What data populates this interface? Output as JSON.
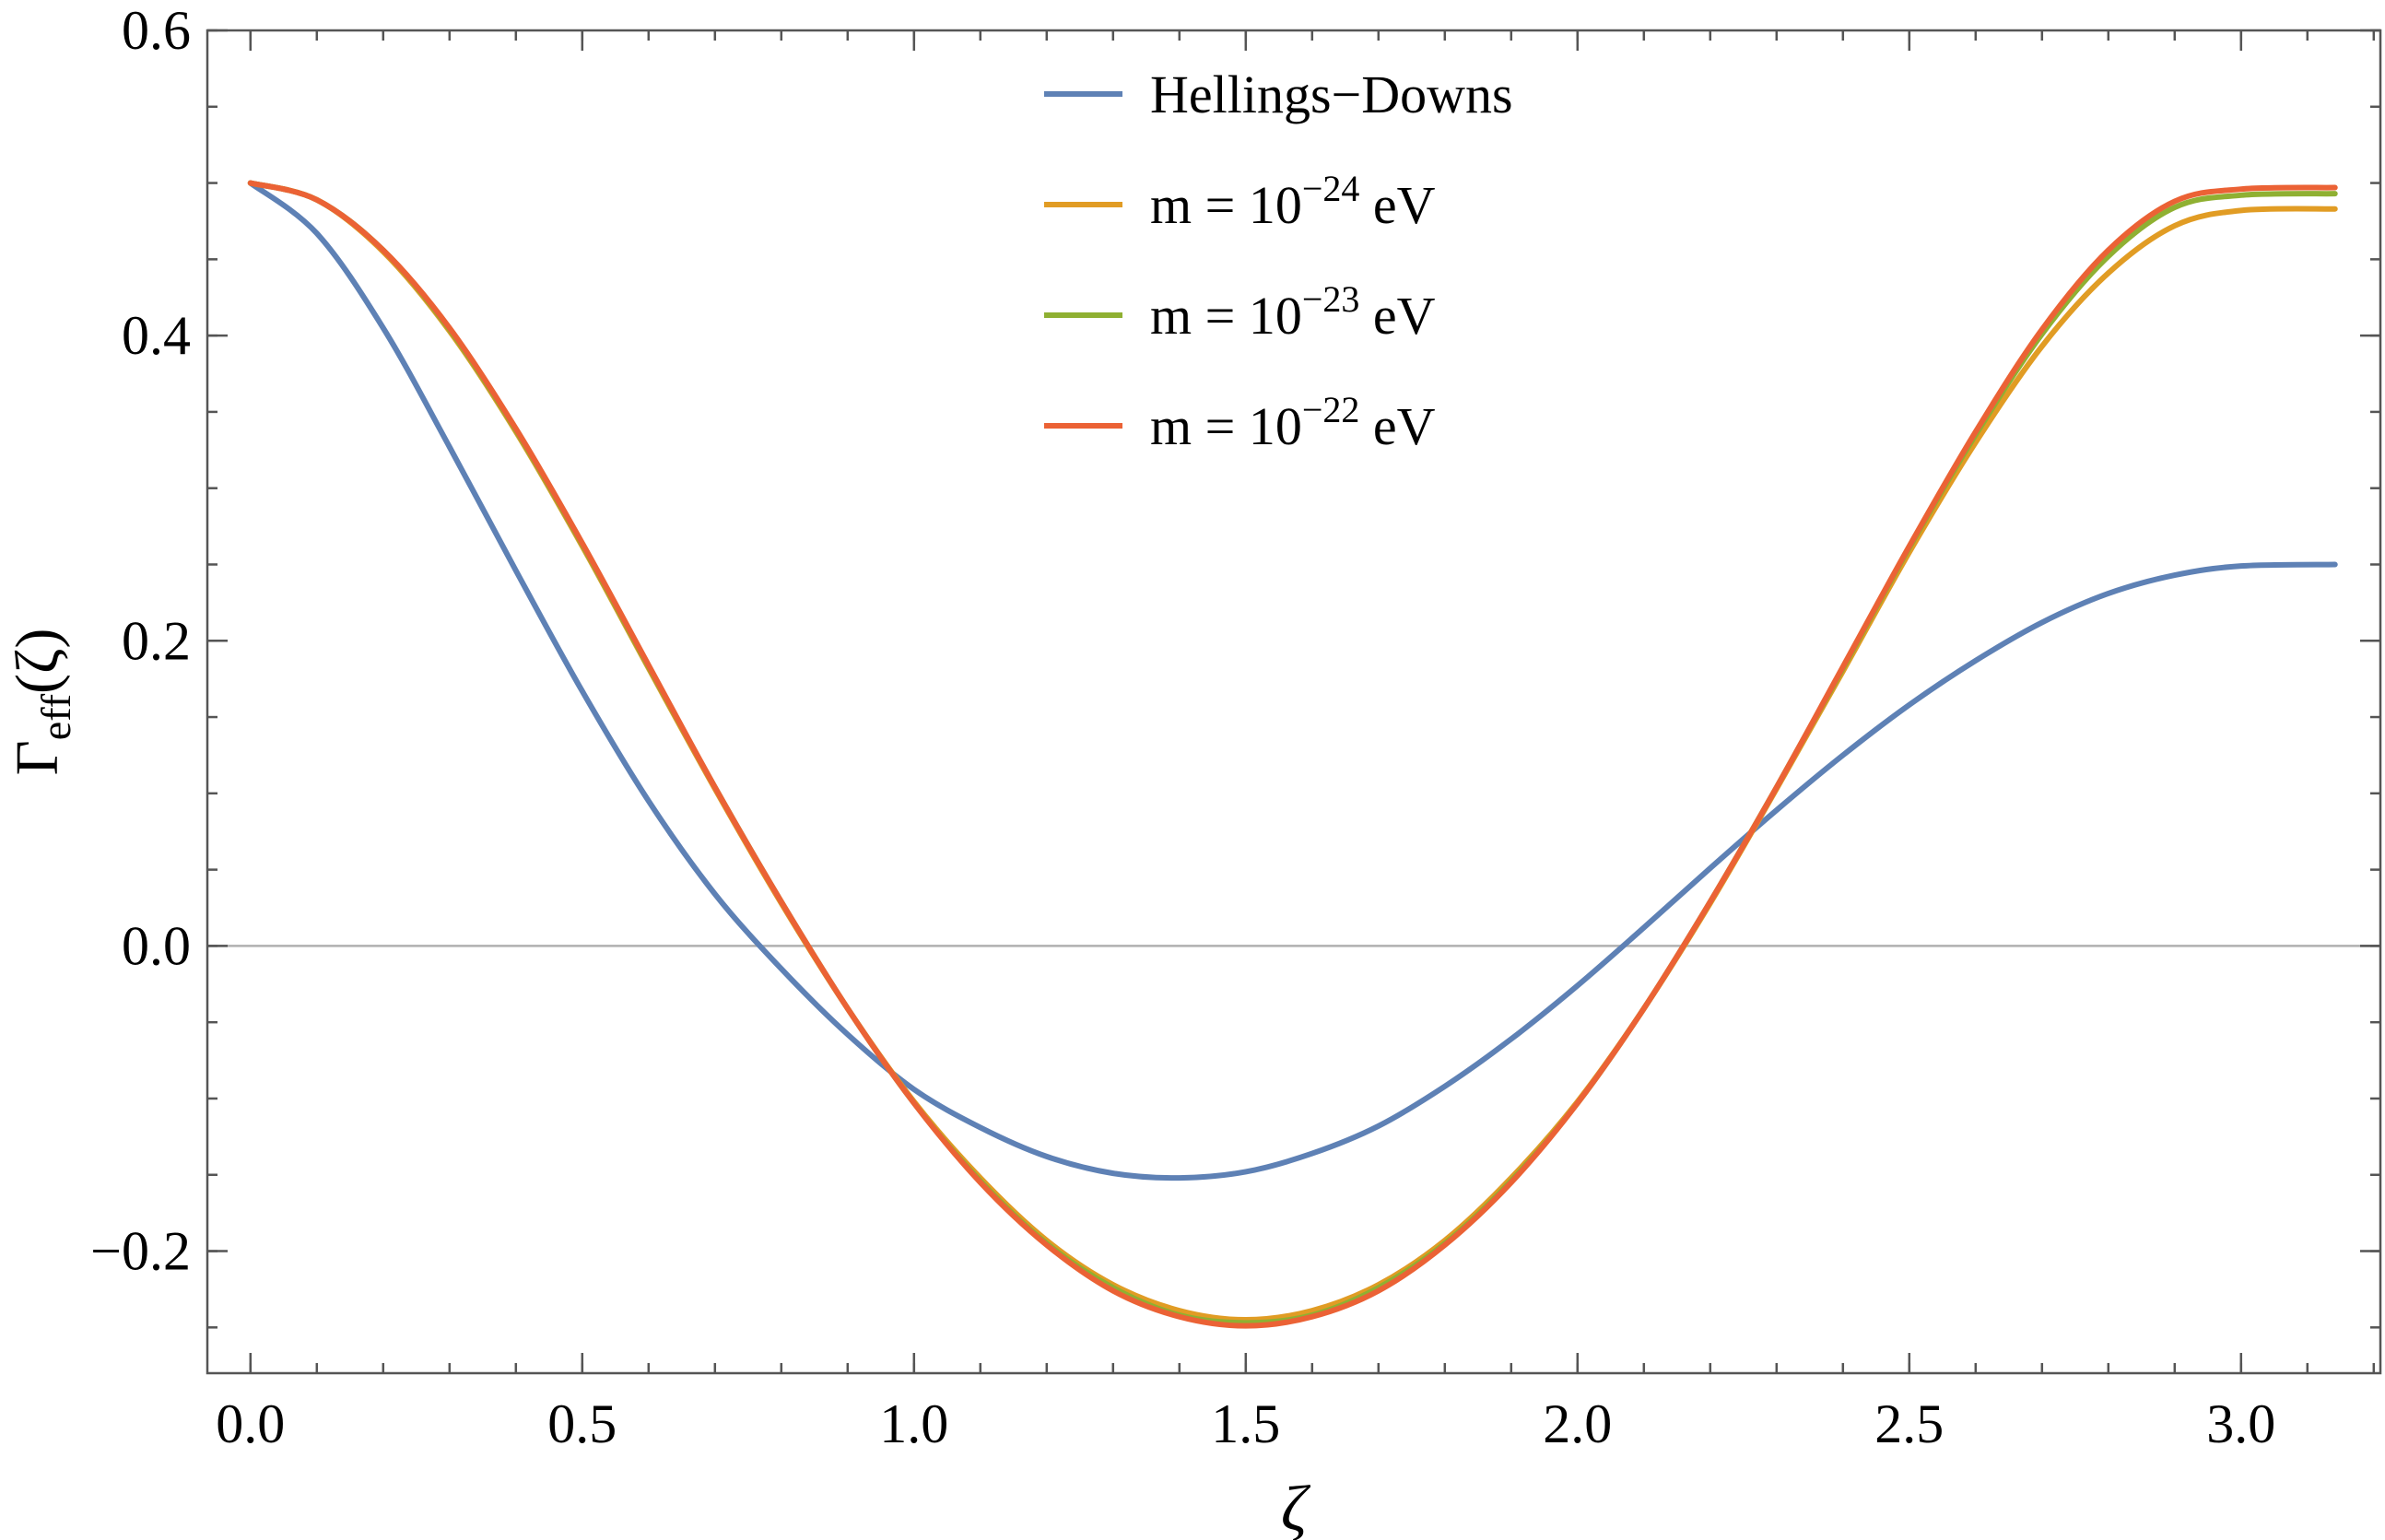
{
  "chart_data": {
    "type": "line",
    "xlabel": "ζ",
    "ylabel": {
      "main": "Γ",
      "sub": "eff",
      "arg": "(ζ)"
    },
    "xlim": [
      -0.065,
      3.21
    ],
    "ylim": [
      -0.28,
      0.6
    ],
    "x_ticks": [
      0.0,
      0.5,
      1.0,
      1.5,
      2.0,
      2.5,
      3.0
    ],
    "x_tick_labels": [
      "0.0",
      "0.5",
      "1.0",
      "1.5",
      "2.0",
      "2.5",
      "3.0"
    ],
    "y_ticks": [
      -0.2,
      0.0,
      0.2,
      0.4,
      0.6
    ],
    "y_tick_labels": [
      "−0.2",
      "0.0",
      "0.2",
      "0.4",
      "0.6"
    ],
    "x_minor_step": 0.1,
    "y_minor_step": 0.05,
    "zero_line": true,
    "grid": false,
    "legend_placement": "top-center",
    "x": [
      0.0,
      0.1,
      0.2,
      0.3,
      0.4,
      0.5,
      0.6,
      0.7,
      0.8,
      0.9,
      1.0,
      1.1,
      1.2,
      1.3,
      1.4,
      1.5,
      1.6,
      1.7,
      1.8,
      1.9,
      2.0,
      2.1,
      2.2,
      2.3,
      2.4,
      2.5,
      2.6,
      2.7,
      2.8,
      2.9,
      3.0,
      3.1416
    ],
    "series": [
      {
        "name": "Hellings−Downs",
        "color": "#5e81b5",
        "values": [
          0.5,
          0.467,
          0.405,
          0.327,
          0.246,
          0.167,
          0.095,
          0.034,
          -0.015,
          -0.058,
          -0.094,
          -0.119,
          -0.138,
          -0.149,
          -0.152,
          -0.148,
          -0.136,
          -0.118,
          -0.092,
          -0.061,
          -0.026,
          0.012,
          0.051,
          0.089,
          0.125,
          0.158,
          0.187,
          0.212,
          0.231,
          0.243,
          0.249,
          0.25
        ]
      },
      {
        "name": "m = 10",
        "exponent": "−24",
        "unit": "eV",
        "color": "#e19c24",
        "values": [
          0.5,
          0.489,
          0.455,
          0.403,
          0.337,
          0.262,
          0.182,
          0.103,
          0.028,
          -0.041,
          -0.102,
          -0.152,
          -0.193,
          -0.222,
          -0.239,
          -0.245,
          -0.239,
          -0.222,
          -0.193,
          -0.152,
          -0.102,
          -0.041,
          0.028,
          0.103,
          0.18,
          0.258,
          0.33,
          0.393,
          0.441,
          0.472,
          0.482,
          0.483
        ]
      },
      {
        "name": "m = 10",
        "exponent": "−23",
        "unit": "eV",
        "color": "#8fb032",
        "values": [
          0.5,
          0.489,
          0.456,
          0.404,
          0.338,
          0.263,
          0.183,
          0.104,
          0.029,
          -0.041,
          -0.103,
          -0.154,
          -0.195,
          -0.224,
          -0.242,
          -0.247,
          -0.242,
          -0.224,
          -0.195,
          -0.154,
          -0.103,
          -0.041,
          0.029,
          0.104,
          0.182,
          0.261,
          0.335,
          0.401,
          0.452,
          0.484,
          0.492,
          0.493
        ]
      },
      {
        "name": "m = 10",
        "exponent": "−22",
        "unit": "eV",
        "color": "#eb6235",
        "values": [
          0.5,
          0.489,
          0.456,
          0.405,
          0.339,
          0.264,
          0.184,
          0.104,
          0.029,
          -0.041,
          -0.103,
          -0.155,
          -0.196,
          -0.226,
          -0.243,
          -0.249,
          -0.243,
          -0.226,
          -0.196,
          -0.155,
          -0.103,
          -0.041,
          0.029,
          0.104,
          0.183,
          0.262,
          0.337,
          0.404,
          0.456,
          0.488,
          0.496,
          0.497
        ]
      }
    ]
  }
}
